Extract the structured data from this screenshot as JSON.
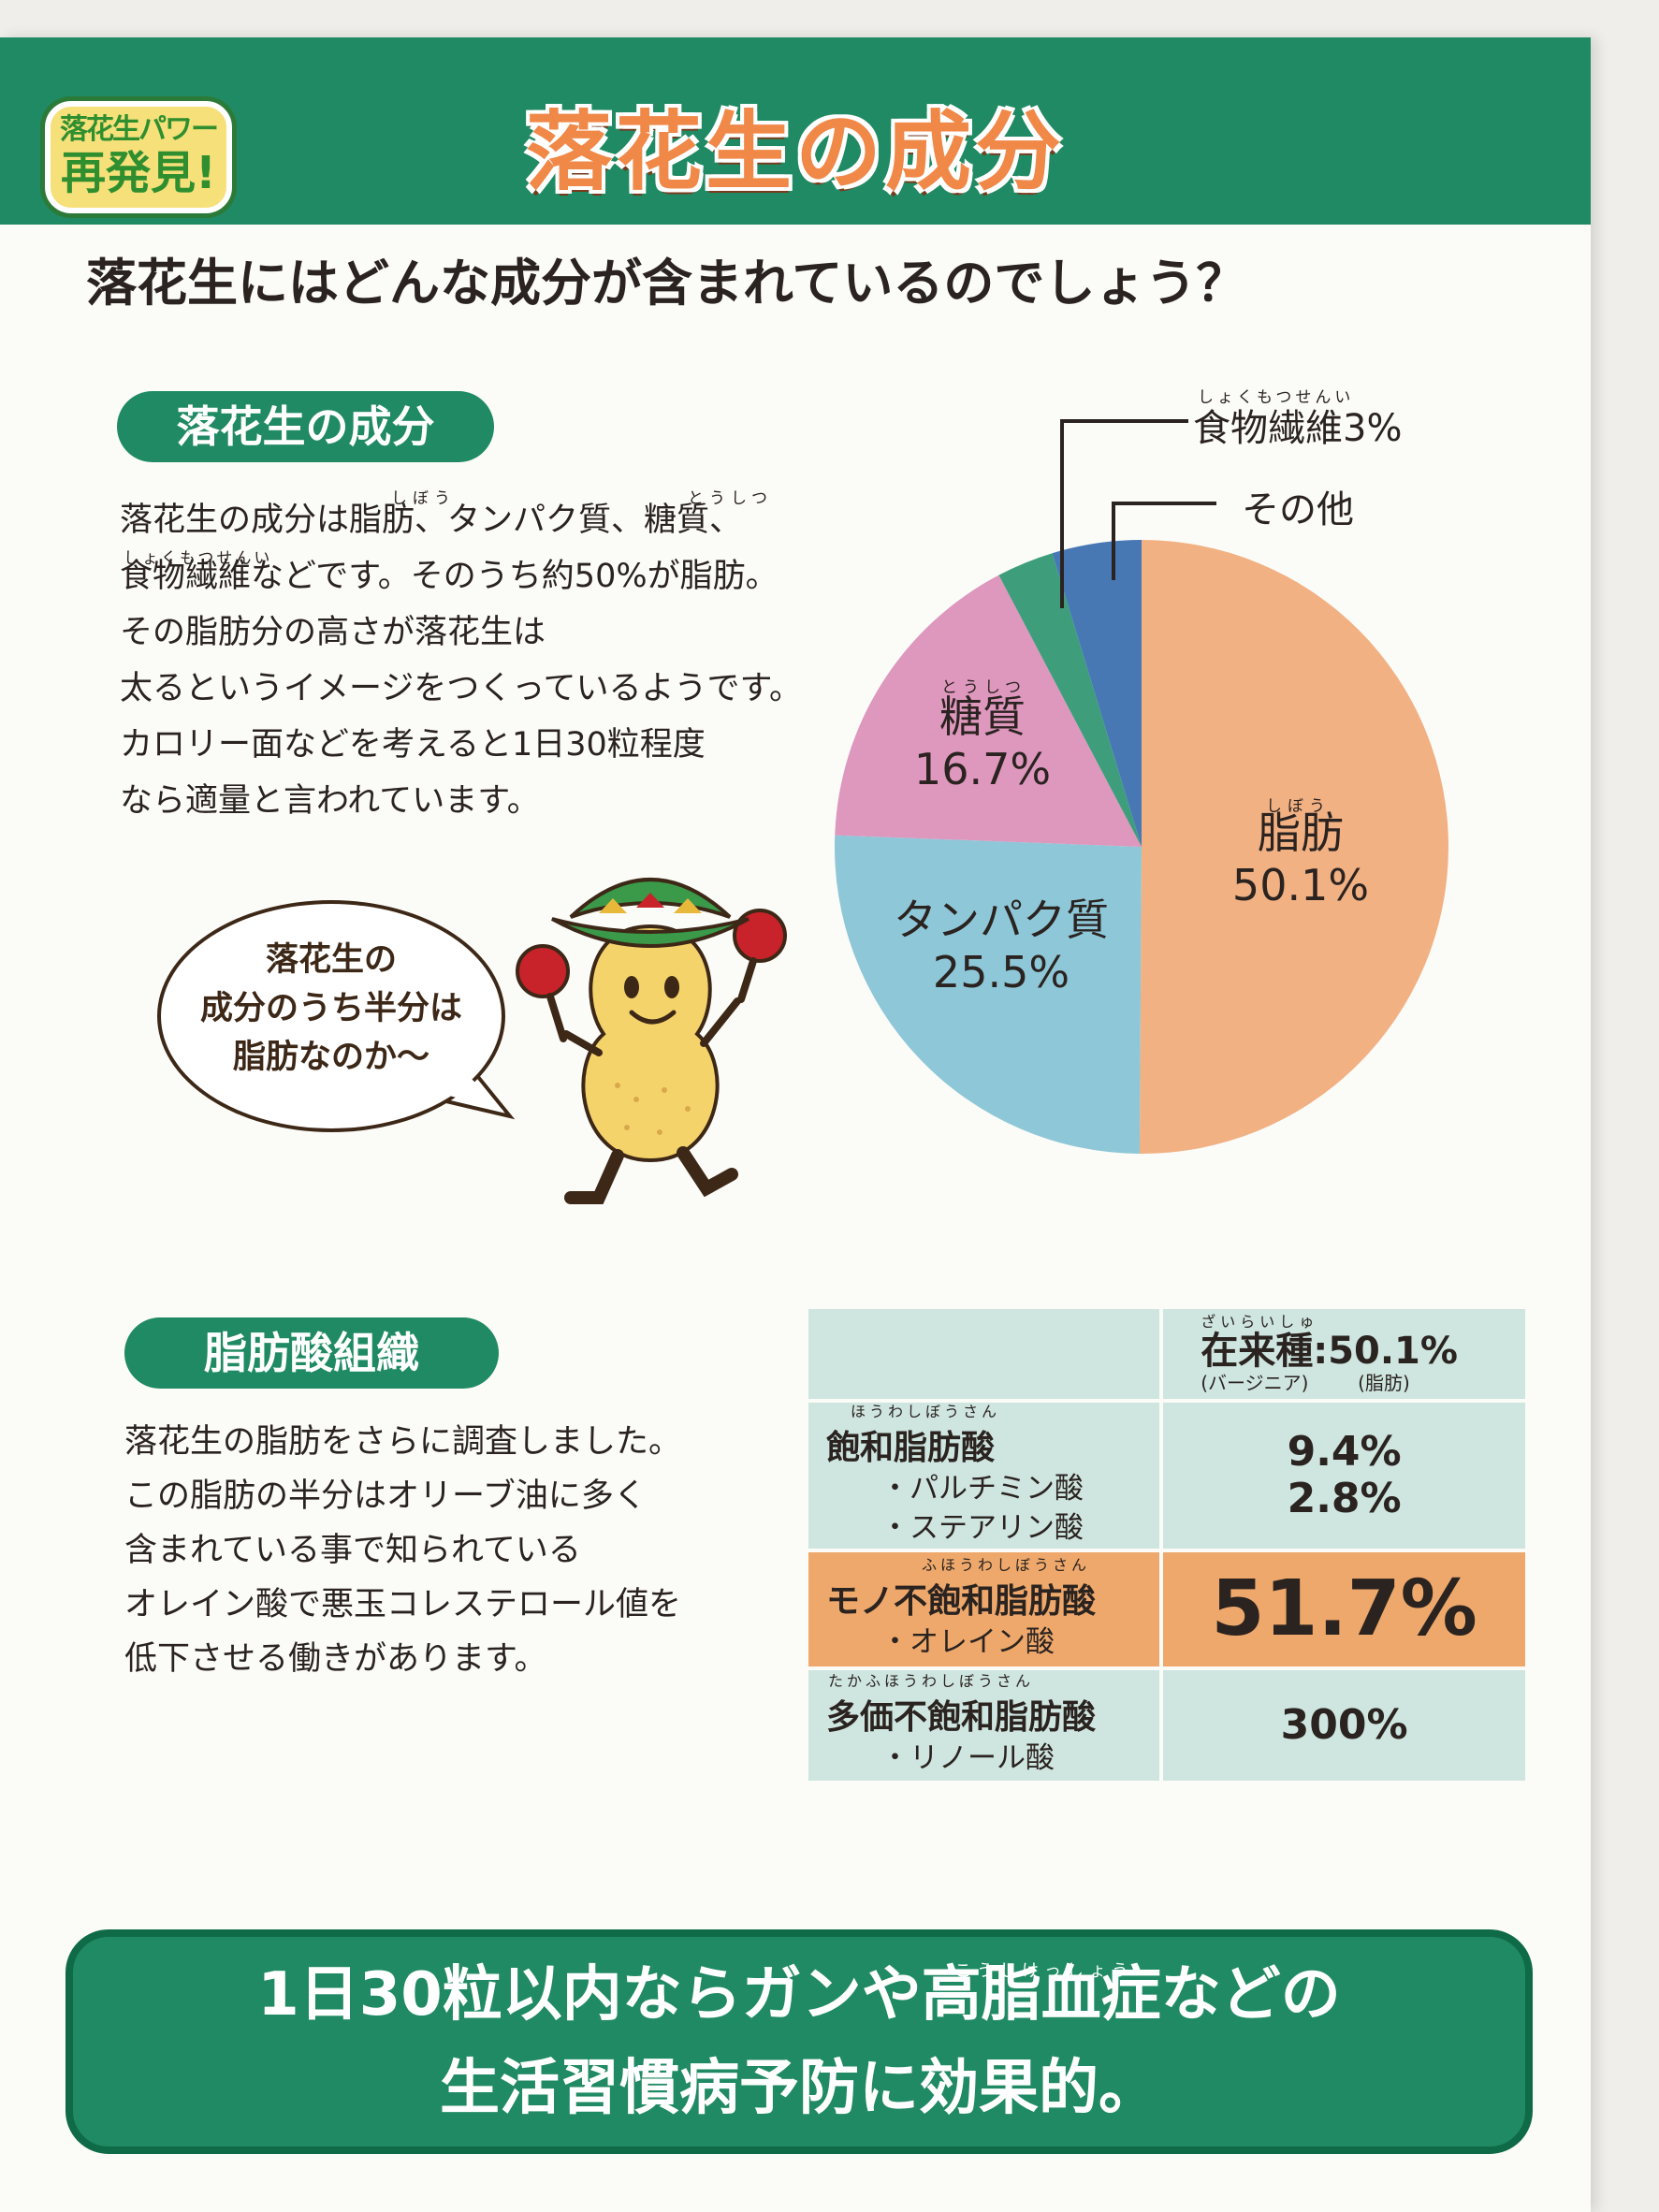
{
  "header": {
    "badge_line1": "落花生パワー",
    "badge_line2": "再発見!",
    "title": "落花生の成分"
  },
  "question": "落花生にはどんな成分が含まれているのでしょう？",
  "section1": {
    "pill": "落花生の成分",
    "lines": [
      "落花生の成分は脂肪、タンパク質、糖質、",
      "食物繊維などです。そのうち約50%が脂肪。",
      "その脂肪分の高さが落花生は",
      "太るというイメージをつくっているようです。",
      "カロリー面などを考えると1日30粒程度",
      "なら適量と言われています。"
    ],
    "furigana": [
      "しぼう",
      "とうしつ",
      "しょくもつせんい"
    ]
  },
  "bubble": {
    "lines": [
      "落花生の",
      "成分のうち半分は",
      "脂肪なのか〜"
    ]
  },
  "chart_data": {
    "type": "pie",
    "slices": [
      {
        "label": "脂肪",
        "furigana": "しぼう",
        "value": 50.1,
        "value_label": "50.1%",
        "color": "#f2b183"
      },
      {
        "label": "タンパク質",
        "value": 25.5,
        "value_label": "25.5%",
        "color": "#8ec7d8"
      },
      {
        "label": "糖質",
        "furigana": "とうしつ",
        "value": 16.7,
        "value_label": "16.7%",
        "color": "#de97bd"
      },
      {
        "label": "食物繊維3%",
        "furigana": "しょくもつせんい",
        "value": 3.0,
        "color": "#3e9e7c"
      },
      {
        "label": "その他",
        "value": 4.7,
        "color": "#4778b4"
      }
    ]
  },
  "section2": {
    "pill": "脂肪酸組織",
    "lines": [
      "落花生の脂肪をさらに調査しました。",
      "この脂肪の半分はオリーブ油に多く",
      "含まれている事で知られている",
      "オレイン酸で悪玉コレステロール値を",
      "低下させる働きがあります。"
    ]
  },
  "fat_table": {
    "header": {
      "furigana": "ざいらいしゅ",
      "title": "在来種:50.1%",
      "sub1": "(バージニア)",
      "sub2": "(脂肪)"
    },
    "rows": [
      {
        "furigana": "ほうわしぼうさん",
        "label": "飽和脂肪酸",
        "subs": [
          "・パルチミン酸",
          "・ステアリン酸"
        ],
        "values": [
          "9.4%",
          "2.8%"
        ]
      },
      {
        "furigana": "ふほうわしぼうさん",
        "label": "モノ不飽和脂肪酸",
        "subs": [
          "・オレイン酸"
        ],
        "values": [
          "51.7%"
        ]
      },
      {
        "furigana": "たかふほうわしぼうさん",
        "label": "多価不飽和脂肪酸",
        "subs": [
          "・リノール酸"
        ],
        "values": [
          "300%"
        ]
      }
    ]
  },
  "footer": {
    "furigana": "こうしけっしょう",
    "line1": "1日30粒以内ならガンや高脂血症などの",
    "line2": "生活習慣病予防に効果的。"
  },
  "colors": {
    "green": "#1f8a63",
    "orange_title": "#f08848",
    "table_bg": "#cfe5e0",
    "table_highlight": "#eea86b"
  }
}
